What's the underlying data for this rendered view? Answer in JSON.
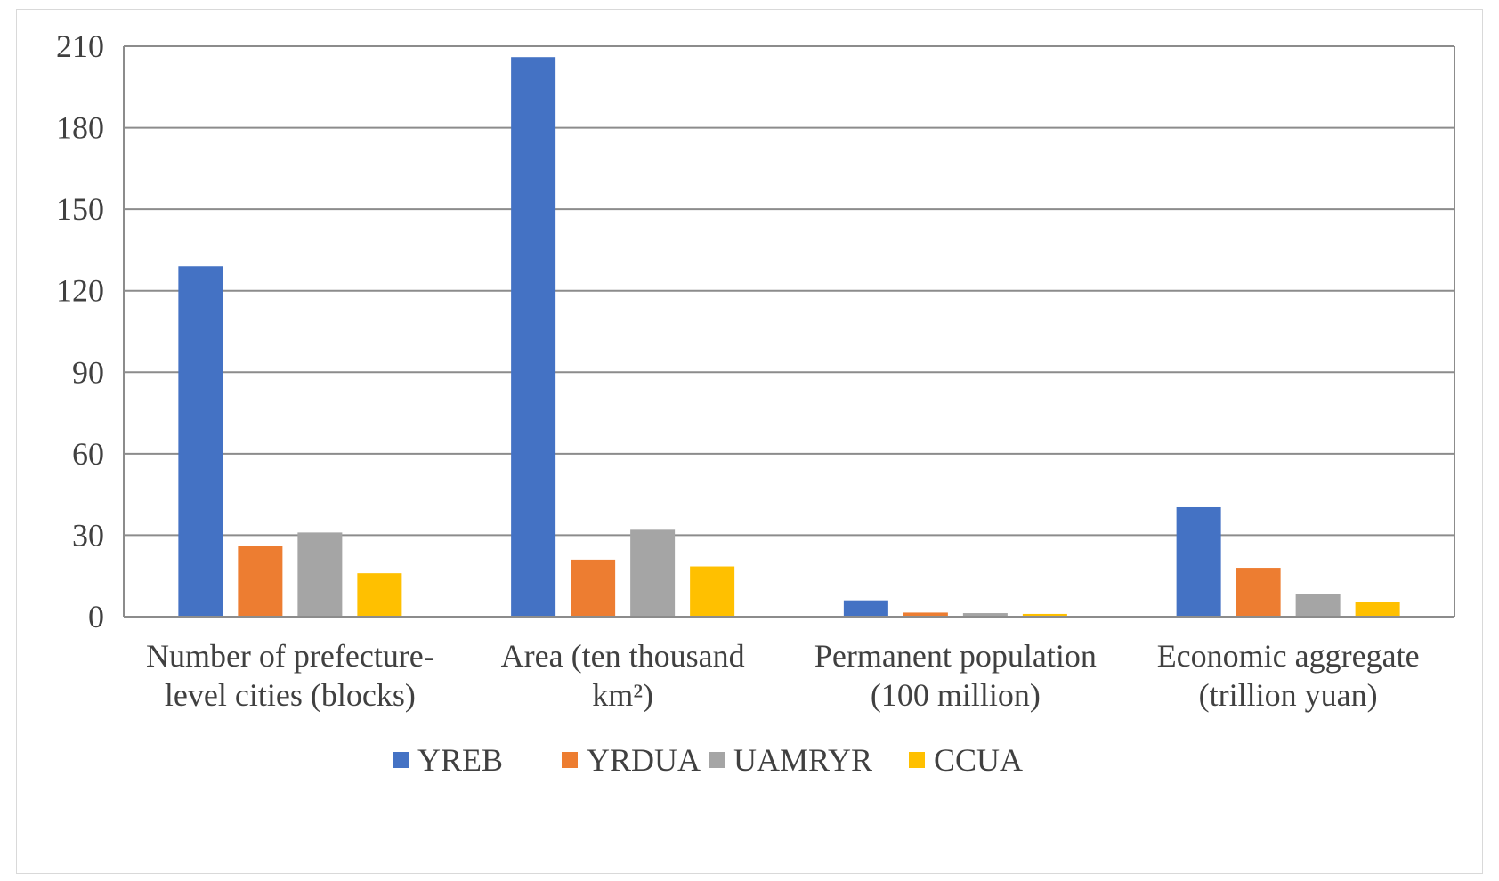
{
  "chart_data": {
    "type": "bar",
    "title": "",
    "xlabel": "",
    "ylabel": "",
    "ylim": [
      0,
      210
    ],
    "yticks": [
      0,
      30,
      60,
      90,
      120,
      150,
      180,
      210
    ],
    "grid": true,
    "legend_position": "bottom",
    "categories": [
      [
        "Number of prefecture-",
        "level cities (blocks)"
      ],
      [
        "Area (ten thousand",
        "km²)"
      ],
      [
        "Permanent population",
        "(100 million)"
      ],
      [
        "Economic aggregate",
        "(trillion yuan)"
      ]
    ],
    "series": [
      {
        "name": "YREB",
        "color": "#4472c4",
        "values": [
          129,
          206,
          6.0,
          40.3
        ]
      },
      {
        "name": "YRDUA",
        "color": "#ed7d31",
        "values": [
          26,
          21,
          1.5,
          18
        ]
      },
      {
        "name": "UAMRYR",
        "color": "#a5a5a5",
        "values": [
          31,
          32,
          1.3,
          8.5
        ]
      },
      {
        "name": "CCUA",
        "color": "#ffc000",
        "values": [
          16,
          18.5,
          1.0,
          5.5
        ]
      }
    ]
  }
}
